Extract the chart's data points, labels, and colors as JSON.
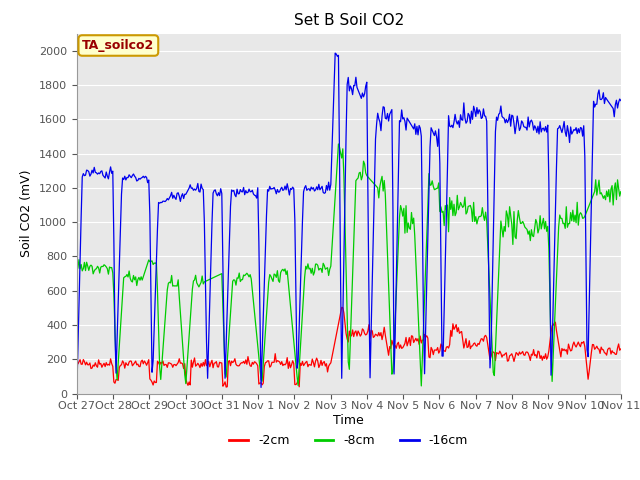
{
  "title": "Set B Soil CO2",
  "ylabel": "Soil CO2 (mV)",
  "xlabel": "Time",
  "annotation_label": "TA_soilco2",
  "ylim": [
    0,
    2100
  ],
  "yticks": [
    0,
    200,
    400,
    600,
    800,
    1000,
    1200,
    1400,
    1600,
    1800,
    2000
  ],
  "line_colors": [
    "#ff0000",
    "#00cc00",
    "#0000ee"
  ],
  "line_labels": [
    "-2cm",
    "-8cm",
    "-16cm"
  ],
  "fig_bg_color": "#ffffff",
  "plot_bg_color": "#e8e8e8",
  "title_fontsize": 11,
  "axis_label_fontsize": 9,
  "tick_fontsize": 8,
  "legend_fontsize": 9,
  "x_tick_labels": [
    "Oct 27",
    "Oct 28",
    "Oct 29",
    "Oct 30",
    "Oct 31",
    "Nov 1",
    "Nov 2",
    "Nov 3",
    "Nov 4",
    "Nov 5",
    "Nov 6",
    "Nov 7",
    "Nov 8",
    "Nov 9",
    "Nov 10",
    "Nov 11"
  ],
  "num_points": 500
}
